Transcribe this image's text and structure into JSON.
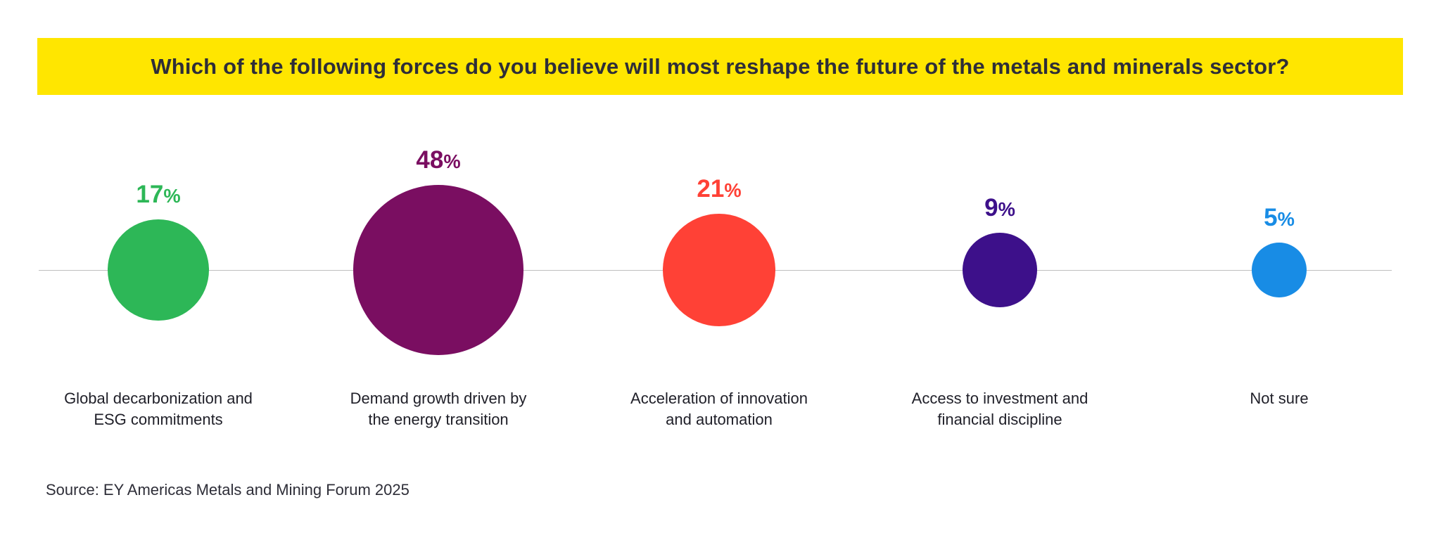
{
  "banner": {
    "title": "Which of the following forces do you believe will most reshape the future of the metals and minerals sector?",
    "background_color": "#FFE600",
    "text_color": "#2E2E38"
  },
  "footer": {
    "source": "Source: EY Americas Metals and Mining Forum 2025"
  },
  "chart_data": {
    "type": "bubble",
    "title": "Which of the following forces do you believe will most reshape the future of the metals and minerals sector?",
    "sizing": "bubble area proportional to percentage value",
    "baseline_color": "#BFBFBF",
    "categories": [
      "Global decarbonization and ESG commitments",
      "Demand growth driven by the energy transition",
      "Acceleration of innovation and automation",
      "Access to investment and financial discipline",
      "Not sure"
    ],
    "values": [
      17,
      48,
      21,
      9,
      5
    ],
    "points": [
      {
        "label": "Global decarbonization and\nESG commitments",
        "value": 17,
        "unit": "%",
        "value_label": "17%",
        "color": "#2DB757"
      },
      {
        "label": "Demand growth driven by\nthe energy transition",
        "value": 48,
        "unit": "%",
        "value_label": "48%",
        "color": "#7A0E61"
      },
      {
        "label": "Acceleration of innovation\nand automation",
        "value": 21,
        "unit": "%",
        "value_label": "21%",
        "color": "#FF4136"
      },
      {
        "label": "Access to investment and\nfinancial discipline",
        "value": 9,
        "unit": "%",
        "value_label": "9%",
        "color": "#3D108A"
      },
      {
        "label": "Not sure",
        "value": 5,
        "unit": "%",
        "value_label": "5%",
        "color": "#188CE5"
      }
    ]
  }
}
